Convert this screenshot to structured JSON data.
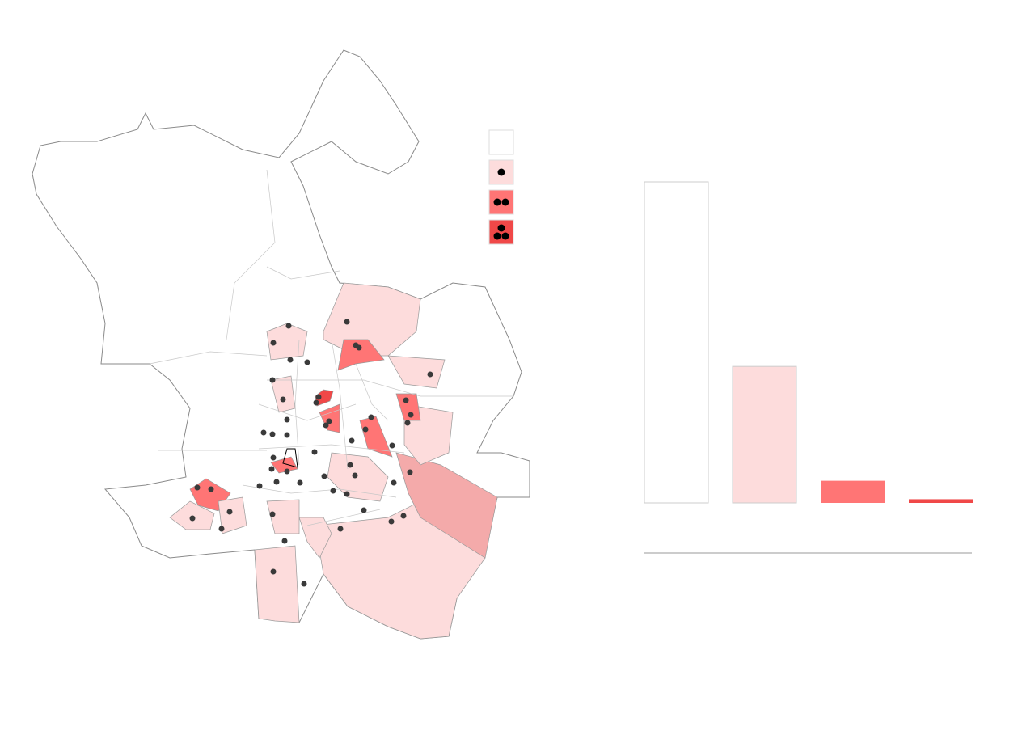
{
  "chart_data": {
    "type": "bar",
    "values": [
      87,
      37,
      6,
      1
    ],
    "colors": [
      "#ffffff",
      "#fddcdc",
      "#ff7575",
      "#f04848"
    ]
  }
}
